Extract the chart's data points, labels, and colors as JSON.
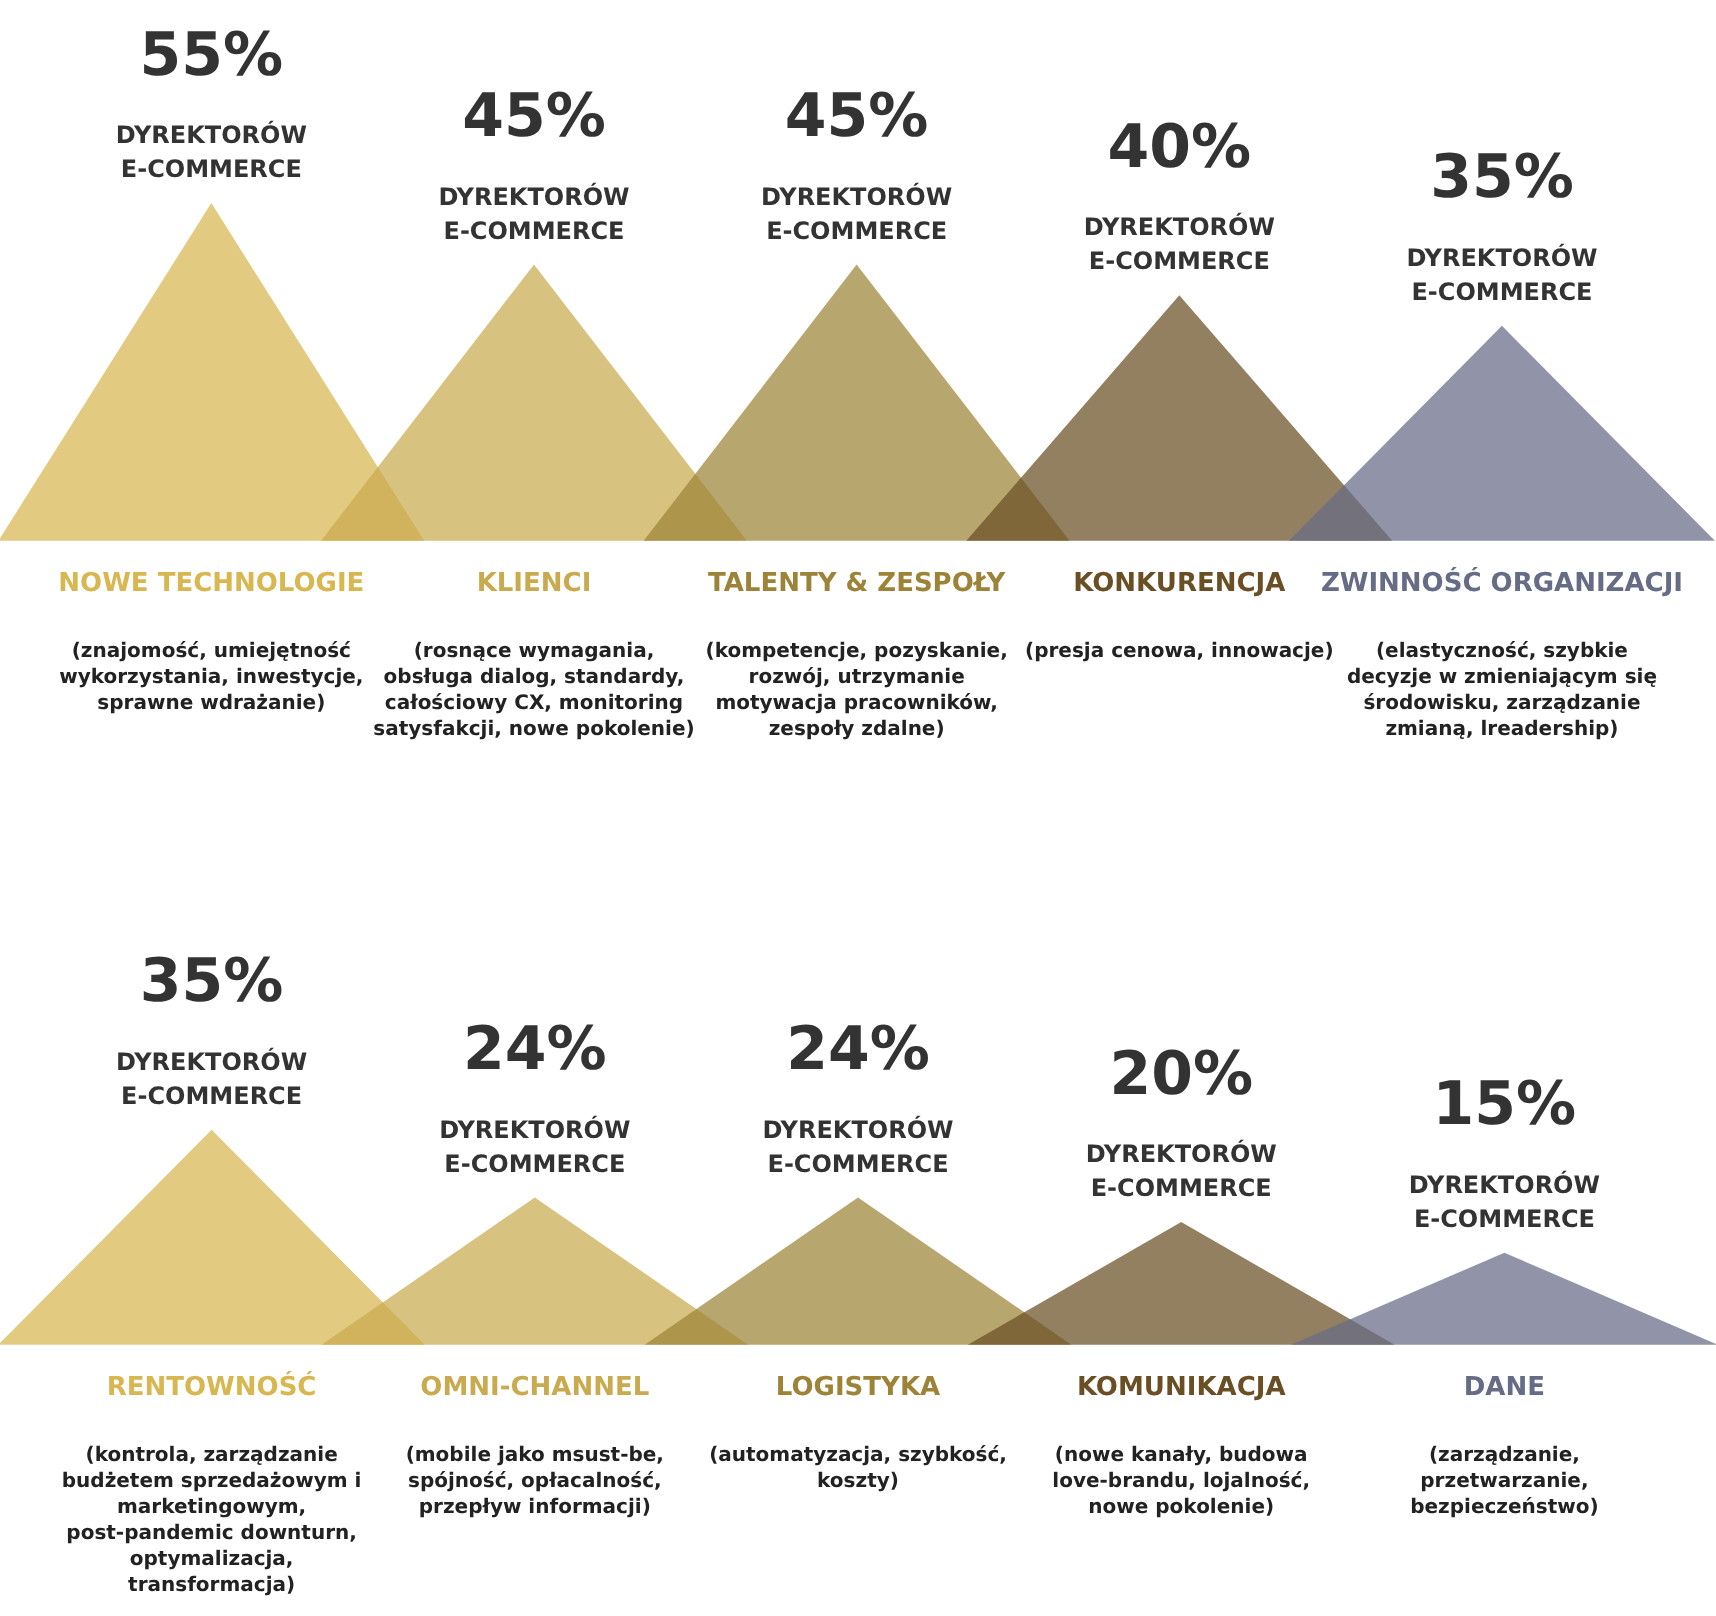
{
  "chart_data": [
    {
      "type": "other",
      "categories": [
        "NOWE TECHNOLOGIE",
        "KLIENCI",
        "TALENTY & ZESPOŁY",
        "KONKURENCJA",
        "ZWINNOŚĆ ORGANIZACJI"
      ],
      "values": [
        55,
        45,
        45,
        40,
        35
      ],
      "colors": [
        "#d8b650",
        "#c9aa4e",
        "#9c8338",
        "#6a4f24",
        "#666b86"
      ],
      "value_labels": [
        "55%",
        "45%",
        "45%",
        "40%",
        "35%"
      ],
      "annotations": [
        {
          "text": "DYREKTORÓW E-COMMERCE",
          "x": "NOWE TECHNOLOGIE"
        },
        {
          "text": "DYREKTORÓW E-COMMERCE",
          "x": "KLIENCI"
        },
        {
          "text": "DYREKTORÓW E-COMMERCE",
          "x": "TALENTY & ZESPOŁY"
        },
        {
          "text": "DYREKTORÓW E-COMMERCE",
          "x": "KONKURENCJA"
        },
        {
          "text": "DYREKTORÓW E-COMMERCE",
          "x": "ZWINNOŚĆ ORGANIZACJI"
        },
        {
          "text": "(znajomość, umiejętność wykorzystania, inwestycje, sprawne wdrażanie)",
          "x": "NOWE TECHNOLOGIE"
        },
        {
          "text": "(rosnące wymagania, obsługa dialog, standardy, całościowy CX, monitoring satysfakcji, nowe pokolenie)",
          "x": "KLIENCI"
        },
        {
          "text": "(kompetencje, pozyskanie, rozwój, utrzymanie motywacja pracowników, zespoły zdalne)",
          "x": "TALENTY & ZESPOŁY"
        },
        {
          "text": "(presja cenowa, innowacje)",
          "x": "KONKURENCJA"
        },
        {
          "text": "(elastyczność, szybkie decyzje w zmieniającym się środowisku, zarządzanie zmianą, lreadership)",
          "x": "ZWINNOŚĆ ORGANIZACJI"
        }
      ]
    },
    {
      "type": "other",
      "categories": [
        "RENTOWNOŚĆ",
        "OMNI-CHANNEL",
        "LOGISTYKA",
        "KOMUNIKACJA",
        "DANE"
      ],
      "values": [
        35,
        24,
        24,
        20,
        15
      ],
      "colors": [
        "#d8b650",
        "#c9aa4e",
        "#9c8338",
        "#6a4f24",
        "#666b86"
      ],
      "value_labels": [
        "35%",
        "24%",
        "24%",
        "20%",
        "15%"
      ],
      "annotations": [
        {
          "text": "DYREKTORÓW E-COMMERCE",
          "x": "RENTOWNOŚĆ"
        },
        {
          "text": "DYREKTORÓW E-COMMERCE",
          "x": "OMNI-CHANNEL"
        },
        {
          "text": "DYREKTORÓW E-COMMERCE",
          "x": "LOGISTYKA"
        },
        {
          "text": "DYREKTORÓW E-COMMERCE",
          "x": "KOMUNIKACJA"
        },
        {
          "text": "DYREKTORÓW E-COMMERCE",
          "x": "DANE"
        },
        {
          "text": "(kontrola, zarządzanie budżetem sprzedażowym i marketingowym, post-pandemic downturn, optymalizacja, transformacja)",
          "x": "RENTOWNOŚĆ"
        },
        {
          "text": "(mobile jako msust-be, spójność, opłacalność, przepływ informacji)",
          "x": "OMNI-CHANNEL"
        },
        {
          "text": "(automatyzacja, szybkość, koszty)",
          "x": "LOGISTYKA"
        },
        {
          "text": "(nowe kanały, budowa love-brandu, lojalność, nowe pokolenie)",
          "x": "KOMUNIKACJA"
        },
        {
          "text": "(zarządzanie, przetwarzanie, bezpieczeństwo)",
          "x": "DANE"
        }
      ]
    }
  ]
}
